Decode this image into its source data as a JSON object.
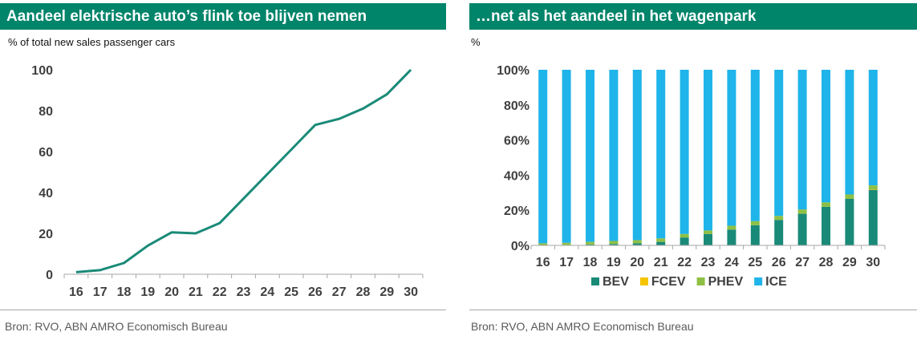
{
  "left_panel": {
    "title": "Aandeel elektrische auto’s flink toe blijven nemen",
    "unit_label": "% of total new sales passenger cars",
    "source": "Bron: RVO, ABN AMRO Economisch Bureau"
  },
  "right_panel": {
    "title": "…net als het aandeel in het wagenpark",
    "unit_label": "%",
    "source": "Bron: RVO, ABN AMRO Economisch Bureau"
  },
  "colors": {
    "title_bar": "#00846a",
    "line": "#1a8a78",
    "BEV": "#1a8a78",
    "FCEV": "#f5c400",
    "PHEV": "#8fc045",
    "ICE": "#1fb4ea",
    "axis": "#a6a6a6"
  },
  "chart_data": [
    {
      "type": "line",
      "title": "Aandeel elektrische auto’s flink toe blijven nemen",
      "ylabel": "% of total new sales passenger cars",
      "categories": [
        "16",
        "17",
        "18",
        "19",
        "20",
        "21",
        "22",
        "23",
        "24",
        "25",
        "26",
        "27",
        "28",
        "29",
        "30"
      ],
      "y_ticks": [
        "0",
        "20",
        "40",
        "60",
        "80",
        "100"
      ],
      "ylim": [
        0,
        100
      ],
      "grid": false,
      "series": [
        {
          "values": [
            1,
            2,
            5.5,
            14,
            20.5,
            20,
            25,
            37,
            49,
            61,
            73,
            76,
            81,
            88,
            100
          ]
        }
      ]
    },
    {
      "type": "bar",
      "stacked": true,
      "title": "…net als het aandeel in het wagenpark",
      "ylabel": "%",
      "categories": [
        "16",
        "17",
        "18",
        "19",
        "20",
        "21",
        "22",
        "23",
        "24",
        "25",
        "26",
        "27",
        "28",
        "29",
        "30"
      ],
      "y_ticks": [
        "0%",
        "20%",
        "40%",
        "60%",
        "80%",
        "100%"
      ],
      "ylim": [
        0,
        100
      ],
      "grid": false,
      "legend_position": "bottom",
      "series": [
        {
          "name": "BEV",
          "values": [
            0.2,
            0.3,
            0.5,
            0.8,
            1.2,
            2.0,
            4.5,
            6.5,
            9.0,
            11.5,
            14.5,
            18,
            22,
            26.5,
            31.5
          ]
        },
        {
          "name": "FCEV",
          "values": [
            0,
            0,
            0,
            0,
            0,
            0,
            0,
            0,
            0,
            0,
            0,
            0,
            0,
            0,
            0.2
          ]
        },
        {
          "name": "PHEV",
          "values": [
            1.0,
            1.2,
            1.5,
            1.7,
            1.8,
            2.0,
            2.0,
            2.0,
            2.2,
            2.3,
            2.3,
            2.5,
            2.5,
            2.5,
            2.5
          ]
        },
        {
          "name": "ICE",
          "values": [
            98.8,
            98.5,
            98.0,
            97.5,
            97.0,
            96.0,
            93.5,
            91.5,
            88.8,
            86.2,
            83.2,
            79.5,
            75.5,
            71.0,
            65.8
          ]
        }
      ]
    }
  ]
}
